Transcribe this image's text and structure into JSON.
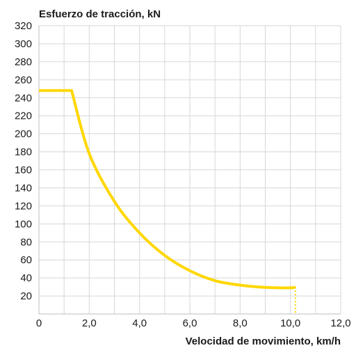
{
  "chart_data": {
    "type": "line",
    "title": "",
    "ylabel": "Esfuerzo de tracción, kN",
    "xlabel": "Velocidad de movimiento, km/h",
    "xlim": [
      0,
      12
    ],
    "ylim": [
      0,
      320
    ],
    "x_ticks": [
      "0",
      "2,0",
      "4,0",
      "6,0",
      "8,0",
      "10,0",
      "12,0"
    ],
    "y_ticks": [
      "320",
      "300",
      "280",
      "260",
      "240",
      "220",
      "200",
      "180",
      "160",
      "140",
      "120",
      "100",
      "80",
      "60",
      "40",
      "20"
    ],
    "grid": true,
    "line_color": "#ffd700",
    "series": [
      {
        "x": [
          0,
          1.3,
          2.0,
          3.0,
          4.0,
          5.0,
          6.0,
          7.0,
          8.0,
          9.0,
          10.0,
          10.2
        ],
        "y": [
          248,
          248,
          178,
          125,
          90,
          65,
          48,
          37,
          32,
          29.5,
          29,
          30
        ]
      }
    ],
    "dropline": {
      "x": 10.2,
      "from_y": 30,
      "to_y": 0,
      "style": "dotted"
    }
  }
}
